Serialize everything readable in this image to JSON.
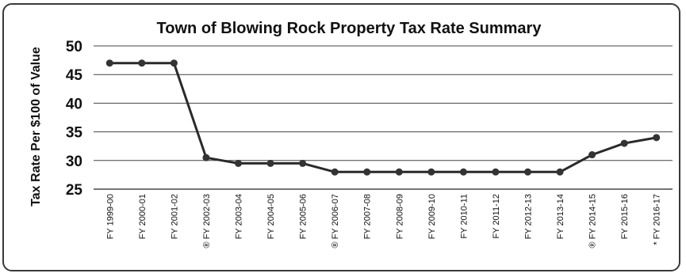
{
  "chart_data": {
    "type": "line",
    "title": "Town of Blowing Rock Property Tax Rate Summary",
    "xlabel": "",
    "ylabel": "Tax Rate Per $100 of Value",
    "ylim": [
      25,
      50
    ],
    "yticks": [
      "25",
      "30",
      "35",
      "40",
      "45",
      "50"
    ],
    "grid": true,
    "categories": [
      "FY 1999-00",
      "FY 2000-01",
      "FY 2001-02",
      "® FY 2002-03",
      "FY 2003-04",
      "FY 2004-05",
      "FY 2005-06",
      "® FY 2006-07",
      "FY 2007-08",
      "FY 2008-09",
      "FY 2009-10",
      "FY 2010-11",
      "FY 2011-12",
      "FY 2012-13",
      "FY 2013-14",
      "® FY 2014-15",
      "FY 2015-16",
      "* FY 2016-17"
    ],
    "series": [
      {
        "values": [
          47,
          47,
          47,
          30.5,
          29.5,
          29.5,
          29.5,
          28,
          28,
          28,
          28,
          28,
          28,
          28,
          28,
          31,
          33,
          34
        ]
      }
    ],
    "colors": {
      "line": "#2a2a2a",
      "grid": "#444444"
    }
  }
}
